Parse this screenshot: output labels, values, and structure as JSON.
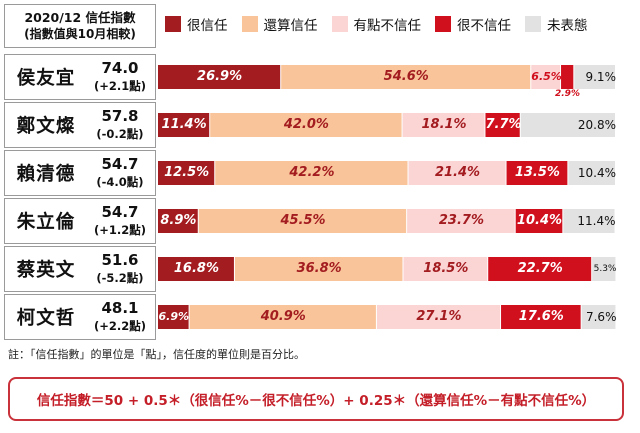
{
  "header": {
    "line1": "2020/12 信任指數",
    "line2": "(指數值與10月相較)"
  },
  "legend": [
    {
      "label": "很信任",
      "color": "#a31c20"
    },
    {
      "label": "還算信任",
      "color": "#f9c499"
    },
    {
      "label": "有點不信任",
      "color": "#fbd4d4"
    },
    {
      "label": "很不信任",
      "color": "#d0101d"
    },
    {
      "label": "未表態",
      "color": "#e2e2e2"
    }
  ],
  "chart_data": {
    "type": "bar",
    "orientation": "horizontal",
    "stacked": true,
    "unit": "%",
    "categories": [
      "侯友宜",
      "鄭文燦",
      "賴清德",
      "朱立倫",
      "蔡英文",
      "柯文哲"
    ],
    "index_values": [
      "74.0",
      "57.8",
      "54.7",
      "54.7",
      "51.6",
      "48.1"
    ],
    "index_changes": [
      "(+2.1點)",
      "(-0.2點)",
      "(-4.0點)",
      "(+1.2點)",
      "(-5.2點)",
      "(+2.2點)"
    ],
    "series": [
      {
        "name": "很信任",
        "values": [
          26.9,
          11.4,
          12.5,
          8.9,
          16.8,
          6.9
        ],
        "labels": [
          "26.9%",
          "11.4%",
          "12.5%",
          "8.9%",
          "16.8%",
          "6.9%"
        ]
      },
      {
        "name": "還算信任",
        "values": [
          54.6,
          42.0,
          42.2,
          45.5,
          36.8,
          40.9
        ],
        "labels": [
          "54.6%",
          "42.0%",
          "42.2%",
          "45.5%",
          "36.8%",
          "40.9%"
        ]
      },
      {
        "name": "有點不信任",
        "values": [
          6.5,
          18.1,
          21.4,
          23.7,
          18.5,
          27.1
        ],
        "labels": [
          "6.5%",
          "18.1%",
          "21.4%",
          "23.7%",
          "18.5%",
          "27.1%"
        ]
      },
      {
        "name": "很不信任",
        "values": [
          2.9,
          7.7,
          13.5,
          10.4,
          22.7,
          17.6
        ],
        "labels": [
          "2.9%",
          "7.7%",
          "13.5%",
          "10.4%",
          "22.7%",
          "17.6%"
        ]
      },
      {
        "name": "未表態",
        "values": [
          9.1,
          20.8,
          10.4,
          11.4,
          5.3,
          7.6
        ],
        "labels": [
          "9.1%",
          "20.8%",
          "10.4%",
          "11.4%",
          "5.3%",
          "7.6%"
        ]
      }
    ],
    "xlim": [
      0,
      100
    ]
  },
  "note": "註：「信任指數」的單位是「點」，信任度的單位則是百分比。",
  "formula": "信任指數＝50 + 0.5＊（很信任%－很不信任%）+ 0.25＊（還算信任%－有點不信任%）"
}
